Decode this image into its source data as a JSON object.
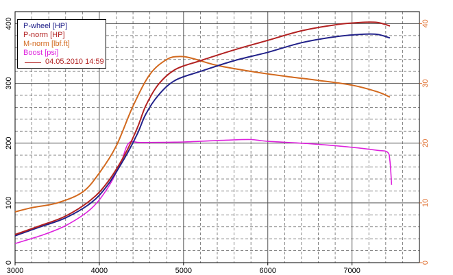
{
  "colors": {
    "p_wheel": "#22228a",
    "p_norm": "#b22222",
    "m_norm": "#d2691e",
    "boost": "#dd22dd",
    "left_axis": "#000000",
    "right_axis": "#e07030",
    "stamp": "#b22222"
  },
  "legend": {
    "items": [
      {
        "label": "P-wheel [HP]",
        "color": "#22228a"
      },
      {
        "label": "P-norm [HP]",
        "color": "#b22222"
      },
      {
        "label": "M-norm [lbf.ft]",
        "color": "#d2691e"
      },
      {
        "label": "Boost [psi]",
        "color": "#dd22dd"
      }
    ],
    "stamp": "04.05.2010 14:59"
  },
  "chart_data": {
    "type": "line",
    "grid": true,
    "legend_position": "top-left",
    "x_axis": {
      "min": 3000,
      "max": 7800,
      "ticks": [
        "3000",
        "4000",
        "5000",
        "6000",
        "7000"
      ]
    },
    "y_left": {
      "min": 0,
      "max": 420,
      "ticks": [
        "0",
        "100",
        "200",
        "300",
        "400"
      ]
    },
    "y_right": {
      "min": 0,
      "max": 42,
      "ticks": [
        "0",
        "10",
        "20",
        "30",
        "40"
      ]
    },
    "series": [
      {
        "name": "P-wheel [HP]",
        "axis": "left",
        "color": "#22228a",
        "x": [
          3000,
          3300,
          3600,
          3900,
          4100,
          4300,
          4450,
          4550,
          4700,
          4900,
          5200,
          5600,
          6000,
          6400,
          6800,
          7100,
          7300,
          7450
        ],
        "y": [
          45,
          60,
          75,
          100,
          130,
          175,
          215,
          248,
          280,
          305,
          320,
          338,
          352,
          368,
          378,
          382,
          382,
          376
        ]
      },
      {
        "name": "P-norm [HP]",
        "axis": "left",
        "color": "#b22222",
        "x": [
          3000,
          3300,
          3600,
          3900,
          4100,
          4300,
          4450,
          4550,
          4700,
          4900,
          5200,
          5600,
          6000,
          6400,
          6800,
          7100,
          7300,
          7450
        ],
        "y": [
          47,
          62,
          78,
          105,
          135,
          180,
          225,
          262,
          298,
          323,
          338,
          356,
          372,
          388,
          398,
          402,
          402,
          396
        ]
      },
      {
        "name": "M-norm [lbf.ft]",
        "axis": "left",
        "color": "#d2691e",
        "x": [
          3000,
          3200,
          3500,
          3800,
          4000,
          4200,
          4400,
          4600,
          4800,
          4950,
          5100,
          5400,
          5800,
          6200,
          6600,
          7000,
          7300,
          7450
        ],
        "y": [
          85,
          92,
          100,
          118,
          150,
          195,
          262,
          315,
          340,
          345,
          342,
          330,
          320,
          312,
          305,
          297,
          286,
          277
        ]
      },
      {
        "name": "Boost [psi]",
        "axis": "right",
        "color": "#dd22dd",
        "x": [
          3000,
          3300,
          3600,
          3900,
          4100,
          4250,
          4350,
          4500,
          5000,
          5500,
          5800,
          6000,
          6500,
          7000,
          7300,
          7420,
          7450,
          7470
        ],
        "y": [
          3.2,
          4.5,
          6.2,
          9.0,
          12.5,
          16.5,
          20.0,
          20.1,
          20.2,
          20.5,
          20.6,
          20.3,
          19.9,
          19.3,
          18.8,
          18.5,
          17.0,
          13.0
        ]
      }
    ]
  }
}
